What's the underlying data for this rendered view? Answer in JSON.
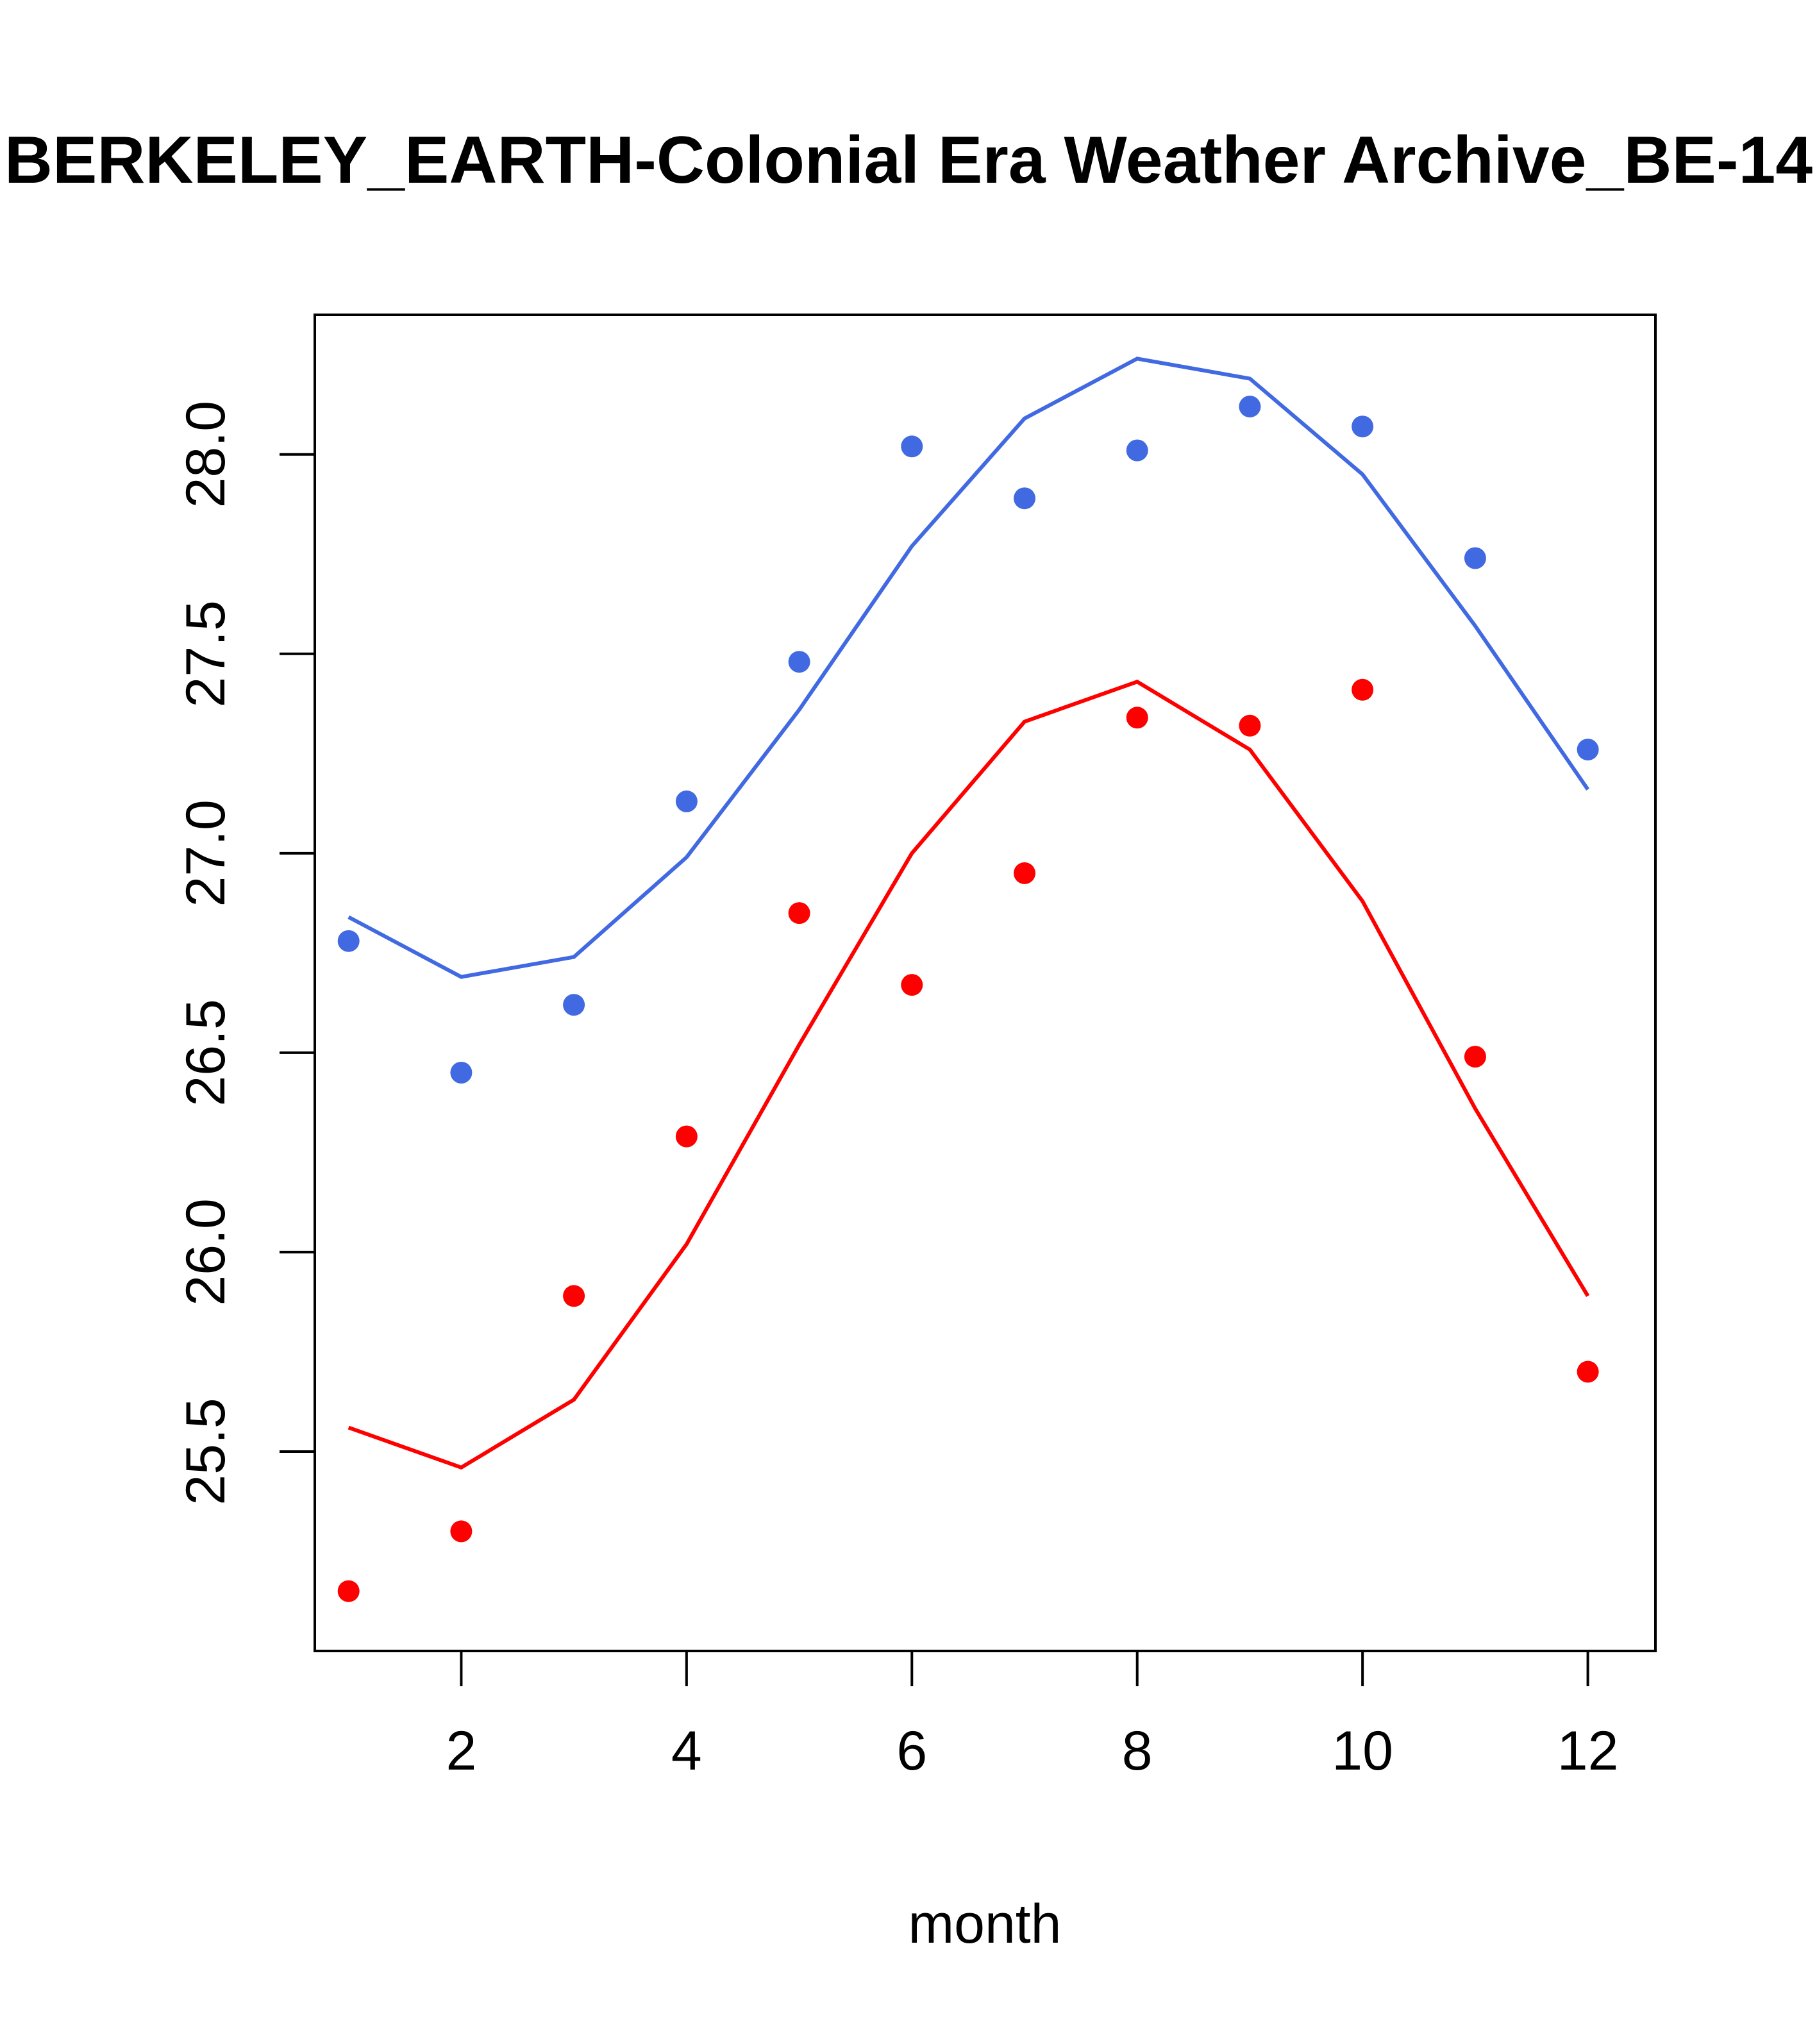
{
  "chart_data": {
    "type": "scatter",
    "title": "BERKELEY_EARTH-Colonial Era Weather Archive_BE-14",
    "xlabel": "month",
    "ylabel": "",
    "xlim": [
      0.7,
      12.6
    ],
    "ylim": [
      25.0,
      28.35
    ],
    "x_ticks": [
      2,
      4,
      6,
      8,
      10,
      12
    ],
    "y_ticks": [
      25.5,
      26.0,
      26.5,
      27.0,
      27.5,
      28.0
    ],
    "x_tick_labels": [
      "2",
      "4",
      "6",
      "8",
      "10",
      "12"
    ],
    "y_tick_labels": [
      "25.5",
      "26.0",
      "26.5",
      "27.0",
      "27.5",
      "28.0"
    ],
    "grid": false,
    "series": [
      {
        "color": "#4169E1",
        "x": [
          1,
          2,
          3,
          4,
          5,
          6,
          7,
          8,
          9,
          10,
          11,
          12
        ],
        "points": [
          26.78,
          26.45,
          26.62,
          27.13,
          27.48,
          28.02,
          27.89,
          28.01,
          28.12,
          28.07,
          27.74,
          27.26
        ],
        "fit": [
          26.84,
          26.69,
          26.74,
          26.99,
          27.36,
          27.77,
          28.09,
          28.24,
          28.19,
          27.95,
          27.57,
          27.16
        ]
      },
      {
        "color": "#FF0000",
        "x": [
          1,
          2,
          3,
          4,
          5,
          6,
          7,
          8,
          9,
          10,
          11,
          12
        ],
        "points": [
          25.15,
          25.3,
          25.89,
          26.29,
          26.85,
          26.67,
          26.95,
          27.34,
          27.32,
          27.41,
          26.49,
          25.7
        ],
        "fit": [
          25.56,
          25.46,
          25.63,
          26.02,
          26.52,
          27.0,
          27.33,
          27.43,
          27.26,
          26.88,
          26.36,
          25.89
        ]
      }
    ]
  }
}
